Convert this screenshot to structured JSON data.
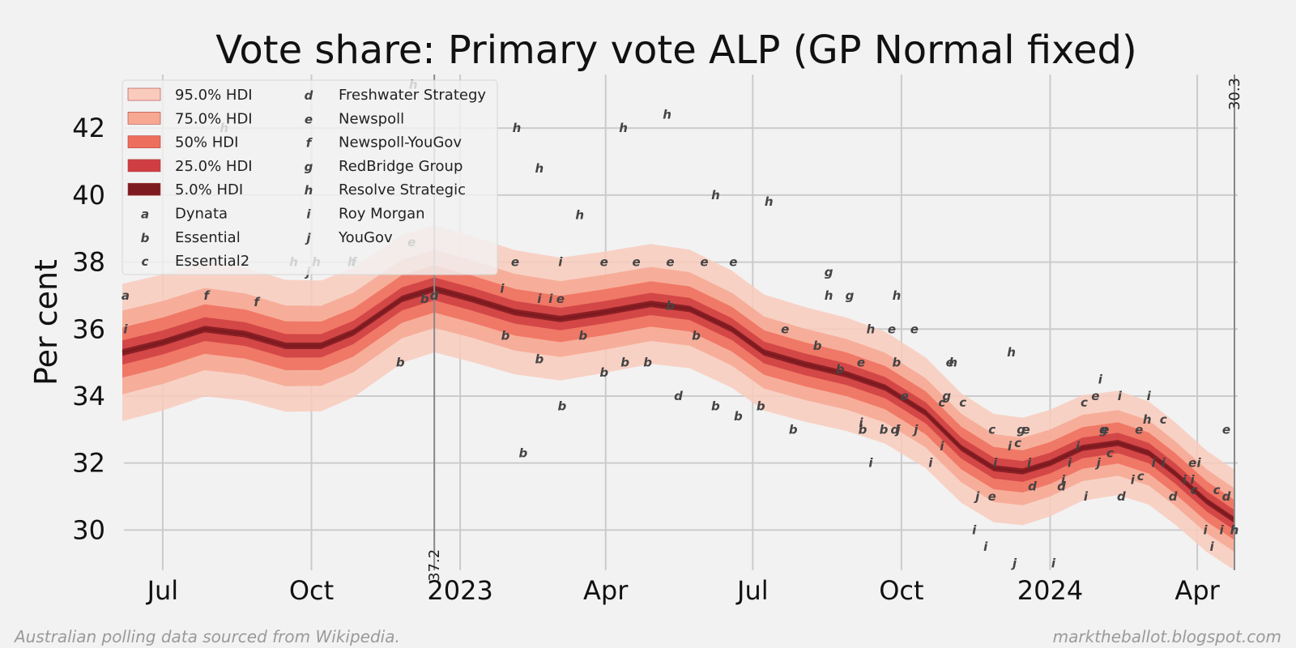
{
  "footer": {
    "source": "Australian polling data sourced from Wikipedia.",
    "site": "marktheballot.blogspot.com"
  },
  "chart_data": {
    "type": "line",
    "title": "Vote share: Primary vote ALP (GP Normal fixed)",
    "ylabel": "Per cent",
    "xlabel": "",
    "xlim": [
      "2022-06-07",
      "2024-04-26"
    ],
    "ylim": [
      28.8,
      43.6
    ],
    "grid": true,
    "legend_position": "top-left",
    "x_ticks": [
      {
        "date": "2022-07-01",
        "label": "Jul"
      },
      {
        "date": "2022-10-01",
        "label": "Oct"
      },
      {
        "date": "2023-01-01",
        "label": "2023"
      },
      {
        "date": "2023-04-01",
        "label": "Apr"
      },
      {
        "date": "2023-07-01",
        "label": "Jul"
      },
      {
        "date": "2023-10-01",
        "label": "Oct"
      },
      {
        "date": "2024-01-01",
        "label": "2024"
      },
      {
        "date": "2024-04-01",
        "label": "Apr"
      }
    ],
    "y_ticks": [
      30,
      32,
      34,
      36,
      38,
      40,
      42
    ],
    "annotations": [
      {
        "date": "2022-12-16",
        "label": "37.2",
        "position": "bottom"
      },
      {
        "date": "2024-04-24",
        "label": "30.3",
        "position": "top"
      }
    ],
    "median": [
      [
        "2022-06-06",
        35.3
      ],
      [
        "2022-07-01",
        35.6
      ],
      [
        "2022-07-27",
        36.0
      ],
      [
        "2022-08-21",
        35.85
      ],
      [
        "2022-09-15",
        35.5
      ],
      [
        "2022-10-07",
        35.5
      ],
      [
        "2022-10-27",
        35.9
      ],
      [
        "2022-11-26",
        36.9
      ],
      [
        "2022-12-16",
        37.2
      ],
      [
        "2023-01-08",
        36.9
      ],
      [
        "2023-02-04",
        36.5
      ],
      [
        "2023-03-04",
        36.3
      ],
      [
        "2023-03-31",
        36.5
      ],
      [
        "2023-04-29",
        36.75
      ],
      [
        "2023-05-23",
        36.6
      ],
      [
        "2023-06-18",
        36.0
      ],
      [
        "2023-07-08",
        35.3
      ],
      [
        "2023-08-02",
        34.95
      ],
      [
        "2023-08-28",
        34.65
      ],
      [
        "2023-09-21",
        34.25
      ],
      [
        "2023-10-16",
        33.5
      ],
      [
        "2023-11-07",
        32.45
      ],
      [
        "2023-11-27",
        31.85
      ],
      [
        "2023-12-15",
        31.75
      ],
      [
        "2024-01-01",
        32.0
      ],
      [
        "2024-01-21",
        32.45
      ],
      [
        "2024-02-12",
        32.6
      ],
      [
        "2024-03-02",
        32.3
      ],
      [
        "2024-03-18",
        31.7
      ],
      [
        "2024-04-07",
        30.85
      ],
      [
        "2024-04-24",
        30.3
      ]
    ],
    "bands": [
      {
        "name": "95.0% HDI",
        "half_width_start": 2.05,
        "half_width_end": 1.5,
        "color": "#f9cbbd"
      },
      {
        "name": "75.0% HDI",
        "half_width_start": 1.25,
        "half_width_end": 0.95,
        "color": "#f6a892"
      },
      {
        "name": "50% HDI",
        "half_width_start": 0.75,
        "half_width_end": 0.6,
        "color": "#ee6e5d"
      },
      {
        "name": "25.0% HDI",
        "half_width_start": 0.36,
        "half_width_end": 0.3,
        "color": "#cf3e42"
      },
      {
        "name": "5.0% HDI",
        "half_width_start": 0.1,
        "half_width_end": 0.09,
        "color": "#7d1a20"
      }
    ],
    "median_color": "#7d1a20",
    "pollsters": [
      {
        "marker": "a",
        "name": "Dynata"
      },
      {
        "marker": "b",
        "name": "Essential"
      },
      {
        "marker": "c",
        "name": "Essential2"
      },
      {
        "marker": "d",
        "name": "Freshwater Strategy"
      },
      {
        "marker": "e",
        "name": "Newspoll"
      },
      {
        "marker": "f",
        "name": "Newspoll-YouGov"
      },
      {
        "marker": "g",
        "name": "RedBridge Group"
      },
      {
        "marker": "h",
        "name": "Resolve Strategic"
      },
      {
        "marker": "i",
        "name": "Roy Morgan"
      },
      {
        "marker": "j",
        "name": "YouGov"
      }
    ],
    "polls": [
      {
        "m": "a",
        "d": "2022-06-08",
        "v": 37.0
      },
      {
        "m": "i",
        "d": "2022-06-08",
        "v": 36.0
      },
      {
        "m": "f",
        "d": "2022-07-28",
        "v": 37.0
      },
      {
        "m": "f",
        "d": "2022-08-28",
        "v": 36.8
      },
      {
        "m": "h",
        "d": "2022-08-08",
        "v": 42.0
      },
      {
        "m": "h",
        "d": "2022-09-20",
        "v": 38.0
      },
      {
        "m": "j",
        "d": "2022-09-29",
        "v": 37.7
      },
      {
        "m": "h",
        "d": "2022-10-04",
        "v": 38.0
      },
      {
        "m": "h",
        "d": "2022-10-26",
        "v": 38.0
      },
      {
        "m": "f",
        "d": "2022-10-27",
        "v": 38.0
      },
      {
        "m": "b",
        "d": "2022-11-25",
        "v": 35.0
      },
      {
        "m": "e",
        "d": "2022-12-02",
        "v": 38.6
      },
      {
        "m": "h",
        "d": "2022-12-03",
        "v": 43.3
      },
      {
        "m": "b",
        "d": "2022-12-10",
        "v": 36.9
      },
      {
        "m": "d",
        "d": "2022-12-16",
        "v": 37.0
      },
      {
        "m": "i",
        "d": "2023-01-27",
        "v": 37.2
      },
      {
        "m": "e",
        "d": "2023-02-04",
        "v": 38.0
      },
      {
        "m": "b",
        "d": "2023-01-29",
        "v": 35.8
      },
      {
        "m": "h",
        "d": "2023-02-05",
        "v": 42.0
      },
      {
        "m": "b",
        "d": "2023-02-09",
        "v": 32.3
      },
      {
        "m": "b",
        "d": "2023-02-19",
        "v": 35.1
      },
      {
        "m": "h",
        "d": "2023-02-19",
        "v": 40.8
      },
      {
        "m": "i",
        "d": "2023-02-19",
        "v": 36.9
      },
      {
        "m": "i",
        "d": "2023-02-26",
        "v": 36.9
      },
      {
        "m": "e",
        "d": "2023-03-04",
        "v": 36.9
      },
      {
        "m": "i",
        "d": "2023-03-04",
        "v": 38.0
      },
      {
        "m": "b",
        "d": "2023-03-05",
        "v": 33.7
      },
      {
        "m": "h",
        "d": "2023-03-16",
        "v": 39.4
      },
      {
        "m": "b",
        "d": "2023-03-18",
        "v": 35.8
      },
      {
        "m": "b",
        "d": "2023-03-31",
        "v": 34.7
      },
      {
        "m": "e",
        "d": "2023-03-31",
        "v": 38.0
      },
      {
        "m": "h",
        "d": "2023-04-12",
        "v": 42.0
      },
      {
        "m": "b",
        "d": "2023-04-13",
        "v": 35.0
      },
      {
        "m": "e",
        "d": "2023-04-20",
        "v": 38.0
      },
      {
        "m": "b",
        "d": "2023-04-27",
        "v": 35.0
      },
      {
        "m": "h",
        "d": "2023-05-09",
        "v": 42.4
      },
      {
        "m": "e",
        "d": "2023-05-11",
        "v": 38.0
      },
      {
        "m": "b",
        "d": "2023-05-11",
        "v": 36.7
      },
      {
        "m": "d",
        "d": "2023-05-16",
        "v": 34.0
      },
      {
        "m": "b",
        "d": "2023-05-27",
        "v": 35.8
      },
      {
        "m": "e",
        "d": "2023-06-01",
        "v": 38.0
      },
      {
        "m": "b",
        "d": "2023-06-08",
        "v": 33.7
      },
      {
        "m": "h",
        "d": "2023-06-08",
        "v": 40.0
      },
      {
        "m": "e",
        "d": "2023-06-19",
        "v": 38.0
      },
      {
        "m": "b",
        "d": "2023-06-22",
        "v": 33.4
      },
      {
        "m": "b",
        "d": "2023-07-06",
        "v": 33.7
      },
      {
        "m": "h",
        "d": "2023-07-11",
        "v": 39.8
      },
      {
        "m": "e",
        "d": "2023-07-21",
        "v": 36.0
      },
      {
        "m": "b",
        "d": "2023-07-26",
        "v": 33.0
      },
      {
        "m": "b",
        "d": "2023-08-10",
        "v": 35.5
      },
      {
        "m": "g",
        "d": "2023-08-17",
        "v": 37.7
      },
      {
        "m": "h",
        "d": "2023-08-17",
        "v": 37.0
      },
      {
        "m": "b",
        "d": "2023-08-24",
        "v": 34.8
      },
      {
        "m": "g",
        "d": "2023-08-30",
        "v": 37.0
      },
      {
        "m": "i",
        "d": "2023-09-06",
        "v": 33.2
      },
      {
        "m": "e",
        "d": "2023-09-06",
        "v": 35.0
      },
      {
        "m": "b",
        "d": "2023-09-07",
        "v": 33.0
      },
      {
        "m": "h",
        "d": "2023-09-12",
        "v": 36.0
      },
      {
        "m": "i",
        "d": "2023-09-12",
        "v": 32.0
      },
      {
        "m": "b",
        "d": "2023-09-20",
        "v": 33.0
      },
      {
        "m": "e",
        "d": "2023-09-25",
        "v": 36.0
      },
      {
        "m": "d",
        "d": "2023-09-27",
        "v": 33.0
      },
      {
        "m": "h",
        "d": "2023-09-28",
        "v": 37.0
      },
      {
        "m": "j",
        "d": "2023-09-29",
        "v": 33.0
      },
      {
        "m": "b",
        "d": "2023-09-28",
        "v": 35.0
      },
      {
        "m": "e",
        "d": "2023-10-03",
        "v": 34.0
      },
      {
        "m": "e",
        "d": "2023-10-09",
        "v": 36.0
      },
      {
        "m": "j",
        "d": "2023-10-10",
        "v": 33.0
      },
      {
        "m": "i",
        "d": "2023-10-19",
        "v": 32.0
      },
      {
        "m": "c",
        "d": "2023-10-26",
        "v": 33.8
      },
      {
        "m": "i",
        "d": "2023-10-26",
        "v": 32.5
      },
      {
        "m": "g",
        "d": "2023-10-29",
        "v": 34.0
      },
      {
        "m": "e",
        "d": "2023-10-31",
        "v": 35.0
      },
      {
        "m": "h",
        "d": "2023-11-02",
        "v": 35.0
      },
      {
        "m": "c",
        "d": "2023-11-08",
        "v": 33.8
      },
      {
        "m": "i",
        "d": "2023-11-15",
        "v": 30.0
      },
      {
        "m": "j",
        "d": "2023-11-17",
        "v": 31.0
      },
      {
        "m": "i",
        "d": "2023-11-22",
        "v": 29.5
      },
      {
        "m": "e",
        "d": "2023-11-26",
        "v": 31.0
      },
      {
        "m": "c",
        "d": "2023-11-26",
        "v": 33.0
      },
      {
        "m": "i",
        "d": "2023-11-28",
        "v": 32.0
      },
      {
        "m": "i",
        "d": "2023-12-07",
        "v": 32.5
      },
      {
        "m": "h",
        "d": "2023-12-08",
        "v": 35.3
      },
      {
        "m": "j",
        "d": "2023-12-10",
        "v": 29.0
      },
      {
        "m": "c",
        "d": "2023-12-12",
        "v": 32.6
      },
      {
        "m": "g",
        "d": "2023-12-14",
        "v": 33.0
      },
      {
        "m": "e",
        "d": "2023-12-17",
        "v": 33.0
      },
      {
        "m": "i",
        "d": "2023-12-19",
        "v": 32.0
      },
      {
        "m": "d",
        "d": "2023-12-21",
        "v": 31.3
      },
      {
        "m": "i",
        "d": "2024-01-03",
        "v": 29.0
      },
      {
        "m": "d",
        "d": "2024-01-08",
        "v": 31.3
      },
      {
        "m": "i",
        "d": "2024-01-09",
        "v": 31.5
      },
      {
        "m": "i",
        "d": "2024-01-13",
        "v": 32.0
      },
      {
        "m": "i",
        "d": "2024-01-18",
        "v": 32.5
      },
      {
        "m": "c",
        "d": "2024-01-22",
        "v": 33.8
      },
      {
        "m": "i",
        "d": "2024-01-23",
        "v": 31.0
      },
      {
        "m": "e",
        "d": "2024-01-29",
        "v": 34.0
      },
      {
        "m": "i",
        "d": "2024-02-01",
        "v": 34.5
      },
      {
        "m": "j",
        "d": "2024-01-31",
        "v": 32.0
      },
      {
        "m": "g",
        "d": "2024-02-03",
        "v": 33.0
      },
      {
        "m": "c",
        "d": "2024-02-07",
        "v": 32.3
      },
      {
        "m": "e",
        "d": "2024-02-04",
        "v": 33.0
      },
      {
        "m": "i",
        "d": "2024-02-13",
        "v": 34.0
      },
      {
        "m": "d",
        "d": "2024-02-14",
        "v": 31.0
      },
      {
        "m": "i",
        "d": "2024-02-21",
        "v": 31.5
      },
      {
        "m": "e",
        "d": "2024-02-25",
        "v": 33.0
      },
      {
        "m": "c",
        "d": "2024-02-26",
        "v": 31.6
      },
      {
        "m": "h",
        "d": "2024-03-01",
        "v": 33.3
      },
      {
        "m": "i",
        "d": "2024-03-02",
        "v": 34.0
      },
      {
        "m": "i",
        "d": "2024-03-05",
        "v": 32.0
      },
      {
        "m": "c",
        "d": "2024-03-11",
        "v": 33.3
      },
      {
        "m": "i",
        "d": "2024-03-11",
        "v": 32.0
      },
      {
        "m": "d",
        "d": "2024-03-17",
        "v": 31.0
      },
      {
        "m": "i",
        "d": "2024-03-24",
        "v": 31.5
      },
      {
        "m": "e",
        "d": "2024-03-29",
        "v": 32.0
      },
      {
        "m": "i",
        "d": "2024-03-29",
        "v": 31.5
      },
      {
        "m": "c",
        "d": "2024-03-30",
        "v": 31.2
      },
      {
        "m": "i",
        "d": "2024-04-02",
        "v": 32.0
      },
      {
        "m": "i",
        "d": "2024-04-06",
        "v": 30.0
      },
      {
        "m": "i",
        "d": "2024-04-10",
        "v": 29.5
      },
      {
        "m": "c",
        "d": "2024-04-13",
        "v": 31.2
      },
      {
        "m": "i",
        "d": "2024-04-16",
        "v": 30.0
      },
      {
        "m": "d",
        "d": "2024-04-19",
        "v": 31.0
      },
      {
        "m": "h",
        "d": "2024-04-24",
        "v": 30.0
      },
      {
        "m": "e",
        "d": "2024-04-19",
        "v": 33.0
      }
    ]
  }
}
